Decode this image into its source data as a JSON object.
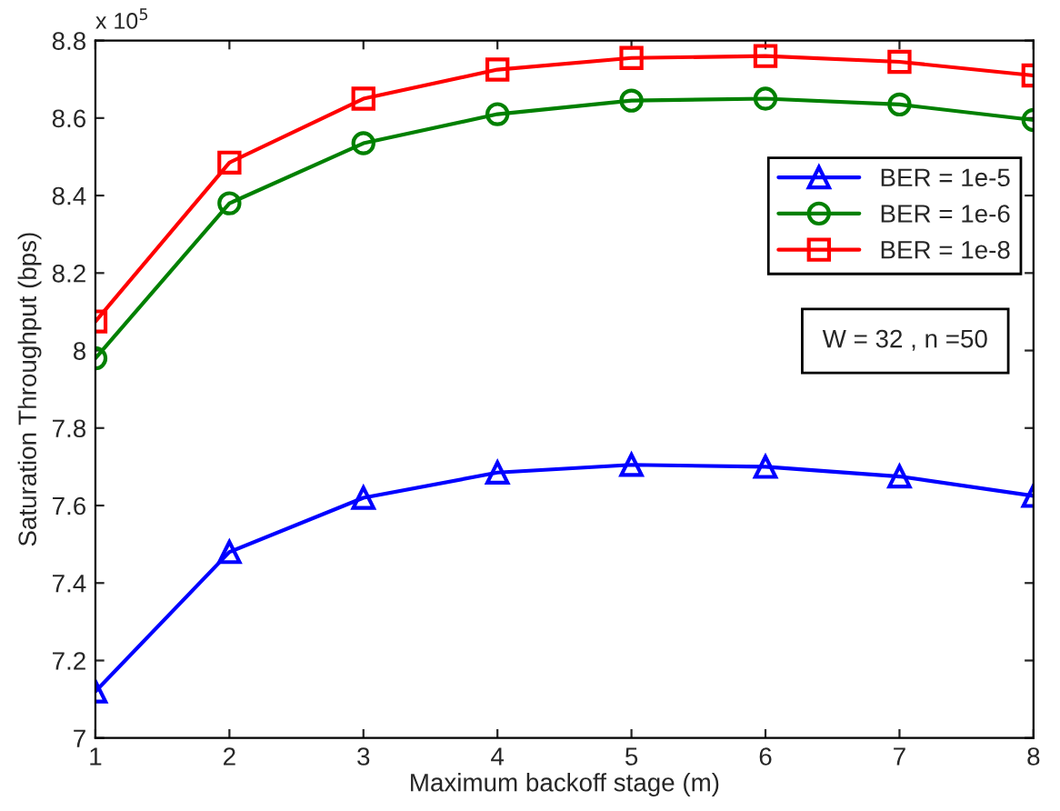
{
  "chart_data": {
    "type": "line",
    "xlabel": "Maximum backoff stage (m)",
    "ylabel": "Saturation Throughput (bps)",
    "x": [
      1,
      2,
      3,
      4,
      5,
      6,
      7,
      8
    ],
    "series": [
      {
        "name": "BER = 1e-5",
        "color": "#0000ff",
        "marker": "triangle",
        "values": [
          7.12,
          7.48,
          7.62,
          7.685,
          7.705,
          7.7,
          7.675,
          7.625
        ]
      },
      {
        "name": "BER = 1e-6",
        "color": "#008000",
        "marker": "circle",
        "values": [
          7.98,
          8.38,
          8.535,
          8.61,
          8.645,
          8.65,
          8.635,
          8.595
        ]
      },
      {
        "name": "BER = 1e-8",
        "color": "#ff0000",
        "marker": "square",
        "values": [
          8.075,
          8.485,
          8.65,
          8.725,
          8.755,
          8.76,
          8.745,
          8.71
        ]
      }
    ],
    "xlim": [
      1,
      8
    ],
    "ylim": [
      7,
      8.8
    ],
    "xticks": [
      1,
      2,
      3,
      4,
      5,
      6,
      7,
      8
    ],
    "yticks": [
      7,
      7.2,
      7.4,
      7.6,
      7.8,
      8,
      8.2,
      8.4,
      8.6,
      8.8
    ],
    "annotations": [
      "x 10$^{5}$",
      "W = 32 , n =50"
    ],
    "legend": "top right",
    "grid": false,
    "line_style": "solid"
  }
}
